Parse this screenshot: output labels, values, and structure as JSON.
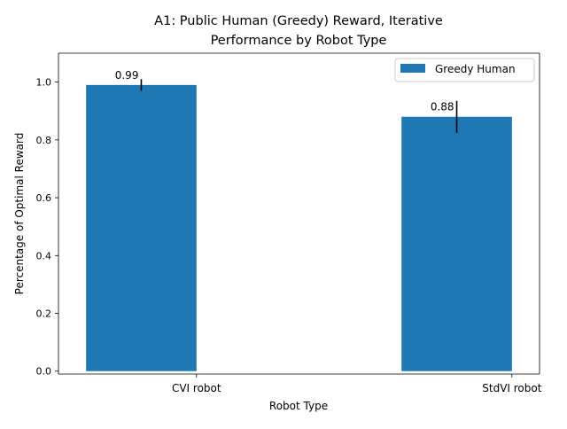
{
  "chart_data": {
    "type": "bar",
    "title_lines": [
      "A1: Public Human (Greedy) Reward, Iterative",
      "Performance by Robot Type"
    ],
    "xlabel": "Robot Type",
    "ylabel": "Percentage of Optimal Reward",
    "categories": [
      "CVI robot",
      "StdVI robot"
    ],
    "series": [
      {
        "name": "Greedy Human",
        "values": [
          0.99,
          0.88
        ],
        "error": [
          0.02,
          0.055
        ],
        "data_labels": [
          "0.99",
          "0.88"
        ],
        "color": "#1f77b4"
      }
    ],
    "ylim": [
      -0.01,
      1.1
    ],
    "yticks": [
      0.0,
      0.2,
      0.4,
      0.6,
      0.8,
      1.0
    ],
    "ytick_labels": [
      "0.0",
      "0.2",
      "0.4",
      "0.6",
      "0.8",
      "1.0"
    ],
    "grid": false,
    "legend_position": "top-right"
  }
}
